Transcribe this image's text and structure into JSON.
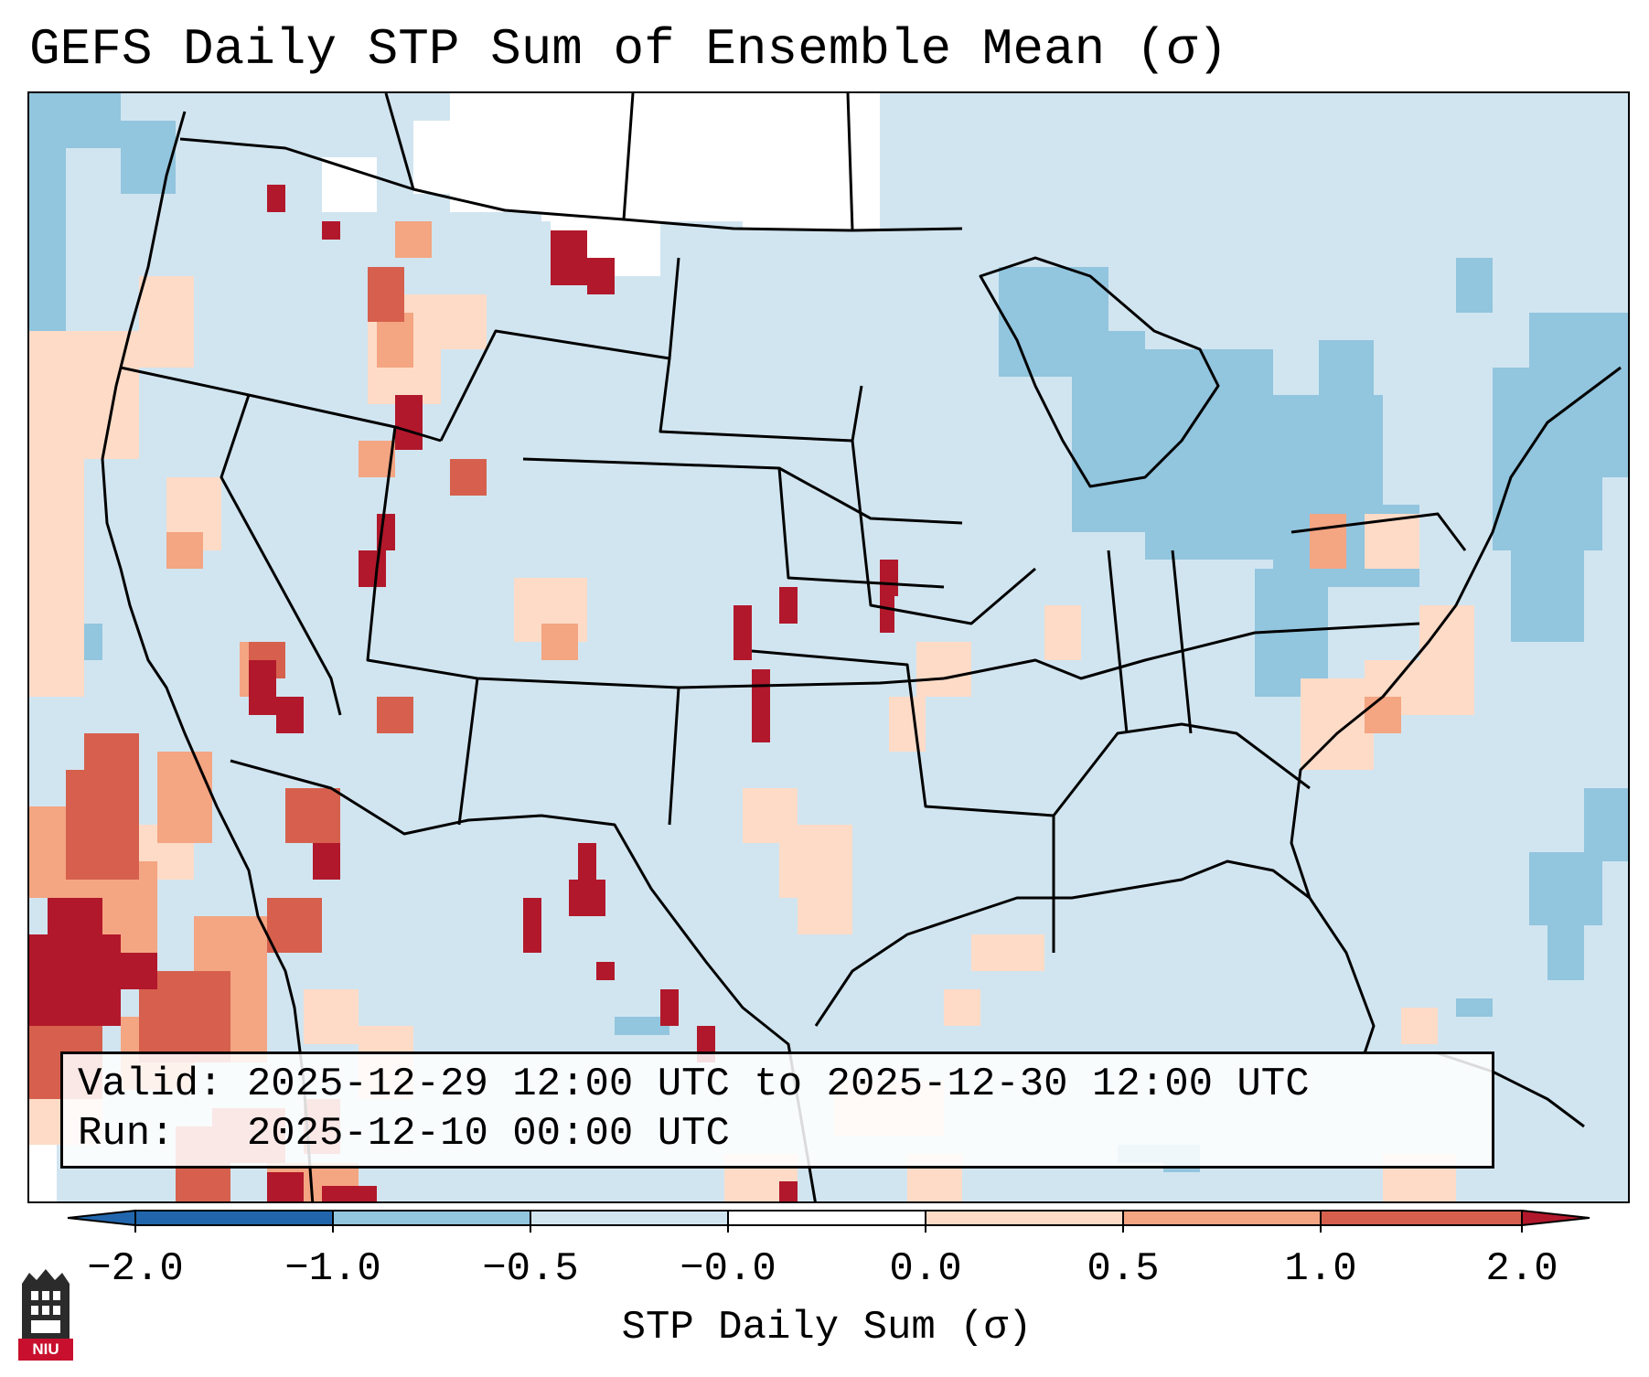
{
  "title": "GEFS Daily STP Sum of Ensemble Mean (σ)",
  "info": {
    "valid_line": "Valid: 2025-12-29 12:00 UTC to 2025-12-30 12:00 UTC",
    "run_line": "Run:   2025-12-10 00:00 UTC"
  },
  "colorbar": {
    "label": "STP Daily Sum (σ)",
    "ticks": [
      "−2.0",
      "−1.0",
      "−0.5",
      "−0.0",
      "0.0",
      "0.5",
      "1.0",
      "2.0"
    ],
    "colors": [
      "#2166ac",
      "#4393c3",
      "#92c5de",
      "#d1e5f0",
      "#ffffff",
      "#fddbc7",
      "#f4a582",
      "#d6604d",
      "#b2182b"
    ],
    "under_color": "#2166ac",
    "over_color": "#b2182b"
  },
  "palette": {
    "neg_strong": "#92c5de",
    "neutral_neg": "#d1e5f0",
    "neutral": "#ffffff",
    "pos_weak": "#fddbc7",
    "pos_mid": "#f4a582",
    "pos_strong": "#d6604d",
    "pos_max": "#b2182b",
    "border": "#000000"
  },
  "logo": {
    "text": "NIU",
    "icon": "niu-tower-icon"
  }
}
